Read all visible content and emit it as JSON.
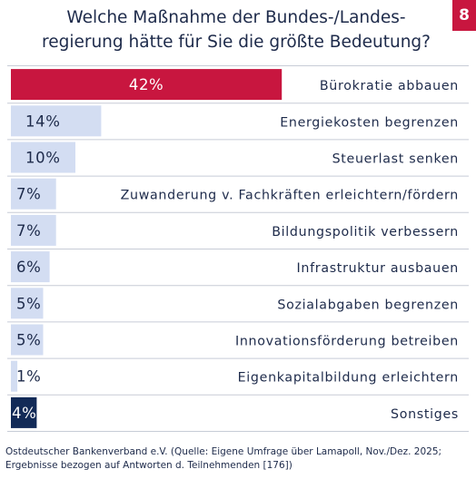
{
  "page_number": "8",
  "title_lines": [
    "Welche Maßnahme der Bundes-/Landes-",
    "regierung hätte für Sie die größte Bedeutung?"
  ],
  "source_lines": [
    "Ostdeutscher Bankenverband e.V. (Quelle: Eigene Umfrage über Lamapoll, Nov./Dez. 2025;",
    "Ergebnisse bezogen auf Antworten d. Teilnehmenden [176])"
  ],
  "colors": {
    "highlight": "#c8163f",
    "default": "#d3ddf2",
    "dark": "#122a57",
    "text": "#1d2a4a",
    "divider": "#c7ccd6"
  },
  "chart_data": {
    "type": "bar",
    "orientation": "horizontal",
    "unit": "%",
    "xlim": [
      0,
      100
    ],
    "grid": false,
    "legend": "none",
    "categories": [
      "Bürokratie abbauen",
      "Energiekosten begrenzen",
      "Steuerlast senken",
      "Zuwanderung v. Fachkräften erleichtern/fördern",
      "Bildungspolitik verbessern",
      "Infrastruktur ausbauen",
      "Sozialabgaben begrenzen",
      "Innovationsförderung betreiben",
      "Eigenkapitalbildung erleichtern",
      "Sonstiges"
    ],
    "values": [
      42,
      14,
      10,
      7,
      7,
      6,
      5,
      5,
      1,
      4
    ],
    "value_labels": [
      "42%",
      "14%",
      "10%",
      "7%",
      "7%",
      "6%",
      "5%",
      "5%",
      "1%",
      "4%"
    ],
    "bar_styles": [
      "highlight",
      "default",
      "default",
      "default",
      "default",
      "default",
      "default",
      "default",
      "default",
      "dark"
    ]
  }
}
